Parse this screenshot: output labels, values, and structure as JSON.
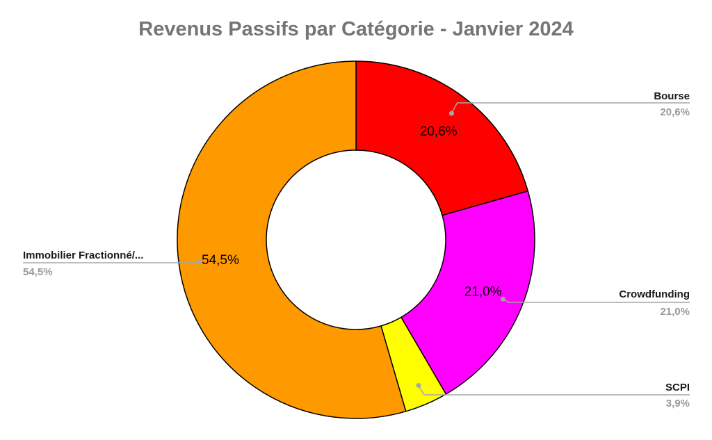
{
  "chart_data": {
    "type": "pie",
    "variant": "donut",
    "title": "Revenus Passifs par Catégorie - Janvier 2024",
    "start": "12 o'clock, clockwise",
    "slices": [
      {
        "label": "Bourse",
        "value": 20.6,
        "display": "20,6%",
        "color": "#FF0000"
      },
      {
        "label": "Crowdfunding",
        "value": 21.0,
        "display": "21,0%",
        "color": "#FF00FF"
      },
      {
        "label": "SCPI",
        "value": 3.9,
        "display": "3,9%",
        "color": "#FFFF00"
      },
      {
        "label": "Immobilier Fractionné/...",
        "value": 54.5,
        "display": "54,5%",
        "color": "#FF9900"
      }
    ],
    "legend": "none"
  }
}
